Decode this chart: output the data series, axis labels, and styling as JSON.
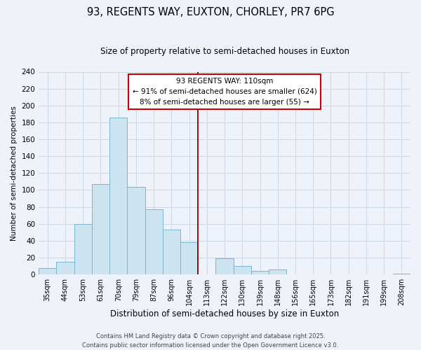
{
  "title": "93, REGENTS WAY, EUXTON, CHORLEY, PR7 6PG",
  "subtitle": "Size of property relative to semi-detached houses in Euxton",
  "bar_labels": [
    "35sqm",
    "44sqm",
    "53sqm",
    "61sqm",
    "70sqm",
    "79sqm",
    "87sqm",
    "96sqm",
    "104sqm",
    "113sqm",
    "122sqm",
    "130sqm",
    "139sqm",
    "148sqm",
    "156sqm",
    "165sqm",
    "173sqm",
    "182sqm",
    "191sqm",
    "199sqm",
    "208sqm"
  ],
  "bar_values": [
    8,
    15,
    60,
    107,
    186,
    104,
    77,
    53,
    38,
    0,
    19,
    10,
    4,
    6,
    0,
    0,
    0,
    0,
    0,
    0,
    1
  ],
  "bar_color": "#cce4f0",
  "bar_edge_color": "#7ab5d0",
  "xlabel": "Distribution of semi-detached houses by size in Euxton",
  "ylabel": "Number of semi-detached properties",
  "ylim": [
    0,
    240
  ],
  "yticks": [
    0,
    20,
    40,
    60,
    80,
    100,
    120,
    140,
    160,
    180,
    200,
    220,
    240
  ],
  "property_line_x": 8.5,
  "property_line_color": "#8b0000",
  "annotation_title": "93 REGENTS WAY: 110sqm",
  "annotation_line1": "← 91% of semi-detached houses are smaller (624)",
  "annotation_line2": "8% of semi-detached houses are larger (55) →",
  "annotation_box_facecolor": "#ffffff",
  "annotation_box_edgecolor": "#cc0000",
  "footer_line1": "Contains HM Land Registry data © Crown copyright and database right 2025.",
  "footer_line2": "Contains public sector information licensed under the Open Government Licence v3.0.",
  "background_color": "#eef2fb",
  "grid_color": "#d0d8e8"
}
